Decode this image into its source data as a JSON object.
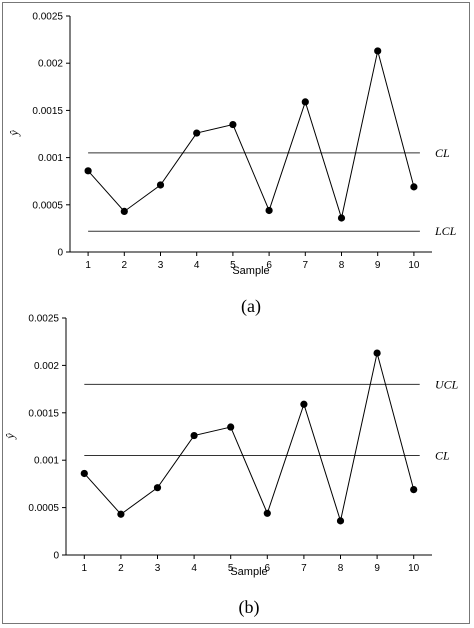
{
  "chart_data": [
    {
      "type": "line",
      "panel_label": "(a)",
      "xlabel": "Sample",
      "ylabel": "ŷ",
      "x": [
        1,
        2,
        3,
        4,
        5,
        6,
        7,
        8,
        9,
        10
      ],
      "ylim": [
        0,
        0.0025
      ],
      "yticks": [
        "0",
        "0.0005",
        "0.001",
        "0.0015",
        "0.002",
        "0.0025"
      ],
      "series": [
        {
          "values": [
            0.00086,
            0.00043,
            0.00071,
            0.00126,
            0.00135,
            0.00044,
            0.00159,
            0.00036,
            0.00213,
            0.00069
          ]
        }
      ],
      "reference_lines": [
        {
          "label": "CL",
          "value": 0.00105
        },
        {
          "label": "LCL",
          "value": 0.00022
        }
      ],
      "grid": false
    },
    {
      "type": "line",
      "panel_label": "(b)",
      "xlabel": "Sample",
      "ylabel": "ŷ",
      "x": [
        1,
        2,
        3,
        4,
        5,
        6,
        7,
        8,
        9,
        10
      ],
      "ylim": [
        0,
        0.0025
      ],
      "yticks": [
        "0",
        "0.0005",
        "0.001",
        "0.0015",
        "0.002",
        "0.0025"
      ],
      "series": [
        {
          "values": [
            0.00086,
            0.00043,
            0.00071,
            0.00126,
            0.00135,
            0.00044,
            0.00159,
            0.00036,
            0.00213,
            0.00069
          ]
        }
      ],
      "reference_lines": [
        {
          "label": "UCL",
          "value": 0.0018
        },
        {
          "label": "CL",
          "value": 0.00105
        }
      ],
      "grid": false
    }
  ]
}
